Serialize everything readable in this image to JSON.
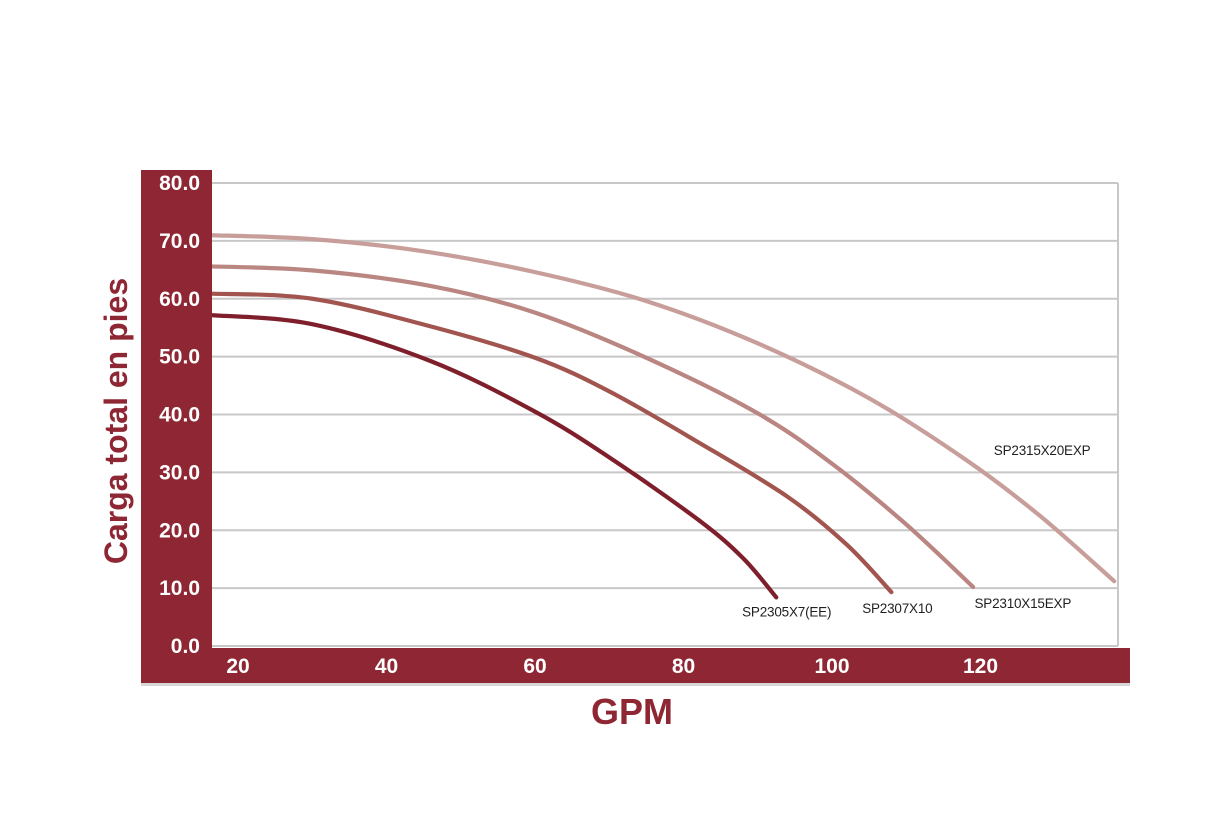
{
  "page": {
    "background": "#ffffff",
    "description": "Pump performance curves: total head (feet) vs flow (GPM)"
  },
  "chart_data": {
    "type": "line",
    "title": "",
    "xlabel": "GPM",
    "ylabel": "Carga total en pies",
    "x_ticks": [
      "20",
      "40",
      "60",
      "80",
      "100",
      "120"
    ],
    "y_ticks": [
      "80.0",
      "70.0",
      "60.0",
      "50.0",
      "40.0",
      "30.0",
      "20.0",
      "10.0",
      "0.0"
    ],
    "x_range_gpm": [
      16.4,
      138.5
    ],
    "y_range_feet": [
      0,
      80
    ],
    "grid": "horizontal-only",
    "legend_position": "inline-curve-labels",
    "axis_band_color": "#8e2733",
    "band_shadow_color": "#d6d6d6",
    "grid_color": "#c8c8c8",
    "tick_text_color": "#ffffff",
    "series_label_color": "#1f1f1f",
    "series": [
      {
        "name": "SP2315X20EXP",
        "color": "#c89e9a",
        "points": [
          [
            16,
            71.0
          ],
          [
            30,
            70.3
          ],
          [
            45,
            68.2
          ],
          [
            60,
            64.6
          ],
          [
            75,
            59.6
          ],
          [
            90,
            52.3
          ],
          [
            105,
            42.8
          ],
          [
            118,
            32.2
          ],
          [
            128,
            22.5
          ],
          [
            138,
            11.2
          ]
        ],
        "label_anchor": {
          "gpm": 128.3,
          "head": 33.9
        }
      },
      {
        "name": "SP2310X15EXP",
        "color": "#ba8682",
        "points": [
          [
            16,
            65.6
          ],
          [
            30,
            64.9
          ],
          [
            46,
            62.2
          ],
          [
            60,
            57.6
          ],
          [
            75,
            49.8
          ],
          [
            90,
            40.2
          ],
          [
            100,
            31.5
          ],
          [
            110,
            21.0
          ],
          [
            119,
            10.2
          ]
        ],
        "label_anchor": {
          "gpm": 125.7,
          "head": 7.4
        }
      },
      {
        "name": "SP2307X10",
        "color": "#a2554f",
        "points": [
          [
            16,
            60.9
          ],
          [
            30,
            60.0
          ],
          [
            46,
            55.2
          ],
          [
            60,
            49.8
          ],
          [
            70,
            44.0
          ],
          [
            82,
            35.2
          ],
          [
            94,
            25.8
          ],
          [
            102,
            17.5
          ],
          [
            108,
            9.3
          ]
        ],
        "label_anchor": {
          "gpm": 108.8,
          "head": 6.6
        }
      },
      {
        "name": "SP2305X7(EE)",
        "color": "#7f1f2b",
        "points": [
          [
            16,
            57.2
          ],
          [
            30,
            55.6
          ],
          [
            46,
            49.2
          ],
          [
            60,
            40.5
          ],
          [
            70,
            32.6
          ],
          [
            82,
            21.8
          ],
          [
            88,
            15.2
          ],
          [
            92.5,
            8.4
          ]
        ],
        "label_anchor": {
          "gpm": 93.9,
          "head": 6.0
        }
      }
    ]
  }
}
